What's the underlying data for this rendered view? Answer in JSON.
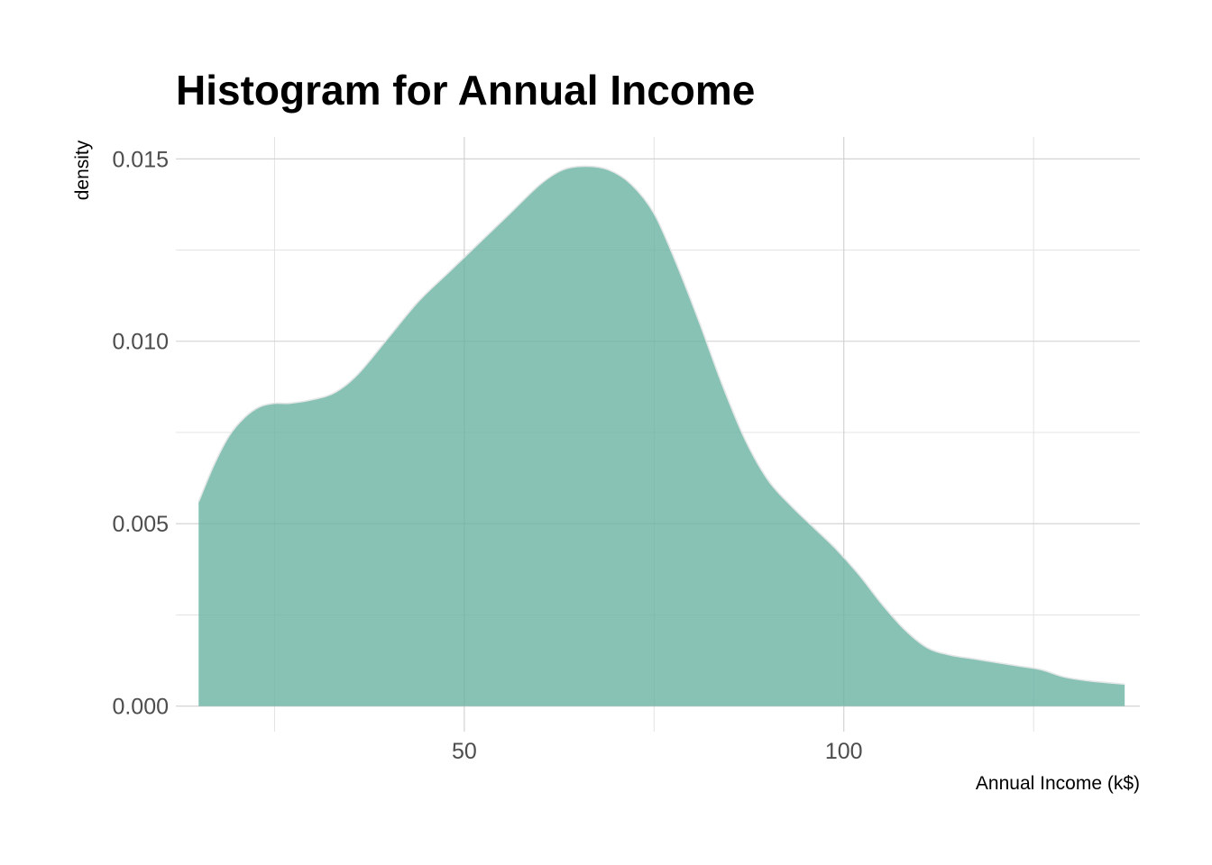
{
  "chart_data": {
    "type": "area",
    "title": "Histogram for Annual Income",
    "xlabel": "Annual Income (k$)",
    "ylabel": "density",
    "xlim": [
      12,
      139
    ],
    "ylim": [
      -0.0007,
      0.0156
    ],
    "x_ticks": [
      50,
      100
    ],
    "x_tick_labels": [
      "50",
      "100"
    ],
    "y_ticks": [
      0.0,
      0.005,
      0.01,
      0.015
    ],
    "y_tick_labels": [
      "0.000",
      "0.005",
      "0.010",
      "0.015"
    ],
    "grid": true,
    "legend": "none",
    "fill_color": "#69b3a2",
    "fill_opacity": 0.8,
    "series": [
      {
        "x": [
          15,
          17,
          19,
          21,
          23,
          25,
          27,
          30,
          33,
          36,
          40,
          44,
          48,
          52,
          56,
          60,
          63,
          66,
          69,
          72,
          75,
          78,
          81,
          84,
          87,
          90,
          93,
          96,
          99,
          102,
          105,
          108,
          111,
          114,
          117,
          120,
          123,
          126,
          129,
          132,
          137
        ],
        "y": [
          0.0056,
          0.0066,
          0.0074,
          0.0079,
          0.0082,
          0.0083,
          0.0083,
          0.0084,
          0.0086,
          0.0091,
          0.0101,
          0.0111,
          0.0119,
          0.0127,
          0.0135,
          0.0143,
          0.0147,
          0.0148,
          0.0147,
          0.0143,
          0.0135,
          0.0121,
          0.0105,
          0.0088,
          0.0073,
          0.0062,
          0.0055,
          0.0049,
          0.0043,
          0.0036,
          0.0028,
          0.0021,
          0.0016,
          0.0014,
          0.0013,
          0.0012,
          0.0011,
          0.001,
          0.0008,
          0.0007,
          0.0006
        ]
      }
    ]
  }
}
